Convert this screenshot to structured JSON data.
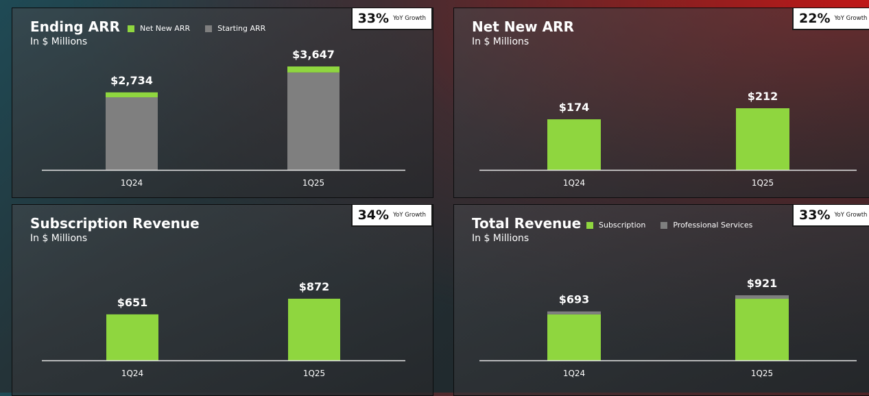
{
  "colors": {
    "green": "#8fd63f",
    "gray": "#7f7f7f",
    "axis": "#e6e6e6"
  },
  "chart_data": [
    {
      "type": "bar",
      "stacked": true,
      "title": "Ending ARR",
      "subtitle": "In $ Millions",
      "categories": [
        "1Q24",
        "1Q25"
      ],
      "series": [
        {
          "name": "Starting ARR",
          "values": [
            2560,
            3435
          ],
          "color": "#7f7f7f"
        },
        {
          "name": "Net New ARR",
          "values": [
            174,
            212
          ],
          "color": "#8fd63f"
        }
      ],
      "data_labels": [
        "$2,734",
        "$3,647"
      ],
      "legend": [
        "Net New ARR",
        "Starting ARR"
      ],
      "legend_position": "top",
      "ylim": [
        0,
        4000
      ],
      "grid": false,
      "badge": {
        "value": "33%",
        "label": "YoY Growth"
      }
    },
    {
      "type": "bar",
      "title": "Net New ARR",
      "subtitle": "In $ Millions",
      "categories": [
        "1Q24",
        "1Q25"
      ],
      "series": [
        {
          "values": [
            174,
            212
          ],
          "color": "#8fd63f"
        }
      ],
      "data_labels": [
        "$174",
        "$212"
      ],
      "ylim": [
        0,
        350
      ],
      "grid": false,
      "badge": {
        "value": "22%",
        "label": "YoY Growth"
      }
    },
    {
      "type": "bar",
      "title": "Subscription Revenue",
      "subtitle": "In $ Millions",
      "categories": [
        "1Q24",
        "1Q25"
      ],
      "series": [
        {
          "values": [
            651,
            872
          ],
          "color": "#8fd63f"
        }
      ],
      "data_labels": [
        "$651",
        "$872"
      ],
      "ylim": [
        0,
        1500
      ],
      "grid": false,
      "badge": {
        "value": "34%",
        "label": "YoY Growth"
      }
    },
    {
      "type": "bar",
      "stacked": true,
      "title": "Total Revenue",
      "subtitle": "In $ Millions",
      "categories": [
        "1Q24",
        "1Q25"
      ],
      "series": [
        {
          "name": "Subscription",
          "values": [
            651,
            872
          ],
          "color": "#8fd63f"
        },
        {
          "name": "Professional Services",
          "values": [
            42,
            49
          ],
          "color": "#7f7f7f"
        }
      ],
      "data_labels": [
        "$693",
        "$921"
      ],
      "legend": [
        "Subscription",
        "Professional Services"
      ],
      "legend_position": "top",
      "ylim": [
        0,
        1500
      ],
      "grid": false,
      "badge": {
        "value": "33%",
        "label": "YoY Growth"
      }
    }
  ]
}
